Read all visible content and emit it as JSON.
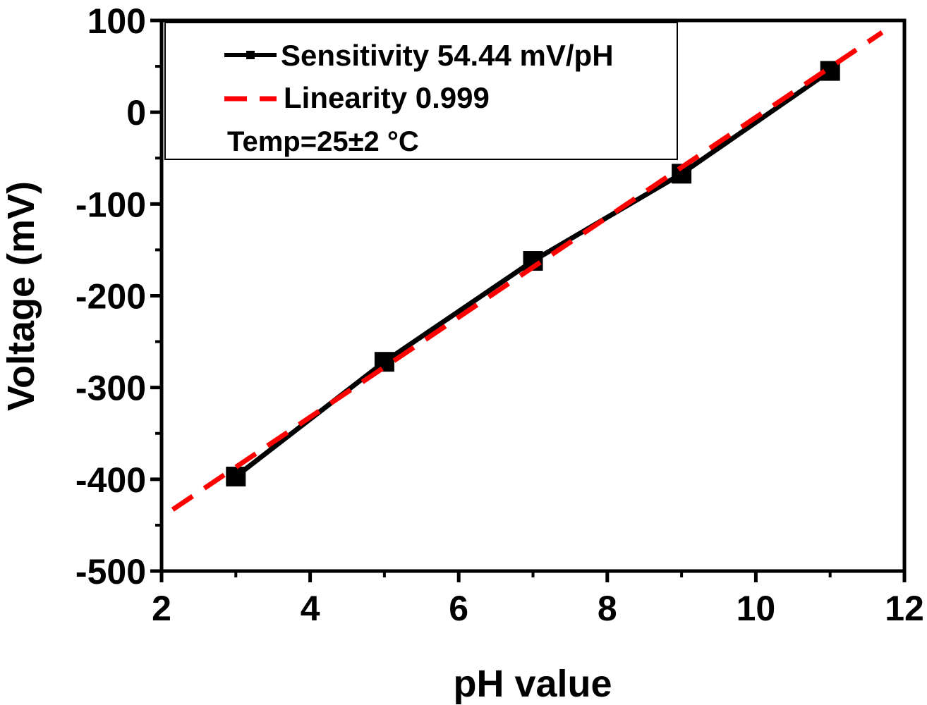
{
  "chart_data": {
    "type": "line",
    "title": "",
    "xlabel": "pH value",
    "ylabel": "Voltage (mV)",
    "xlim": [
      2,
      12
    ],
    "ylim": [
      -500,
      100
    ],
    "x_ticks": [
      "2",
      "4",
      "6",
      "8",
      "10",
      "12"
    ],
    "y_ticks": [
      "100",
      "0",
      "-100",
      "-200",
      "-300",
      "-400",
      "-500"
    ],
    "series": [
      {
        "name": "Sensitivity 54.44 mV/pH",
        "style": "solid-line-square-markers",
        "color": "#000000",
        "x": [
          3,
          5,
          7,
          9,
          11
        ],
        "y": [
          -397,
          -272,
          -162,
          -67,
          45
        ]
      },
      {
        "name": "Linearity 0.999",
        "style": "dashed-line",
        "color": "#ff0000",
        "x": [
          2.15,
          11.7
        ],
        "y": [
          -433,
          87
        ]
      }
    ],
    "legend": {
      "position": "top-left",
      "entries": [
        "Sensitivity 54.44 mV/pH",
        "Linearity 0.999"
      ]
    },
    "annotations": [
      "Temp=25±2 °C"
    ]
  }
}
